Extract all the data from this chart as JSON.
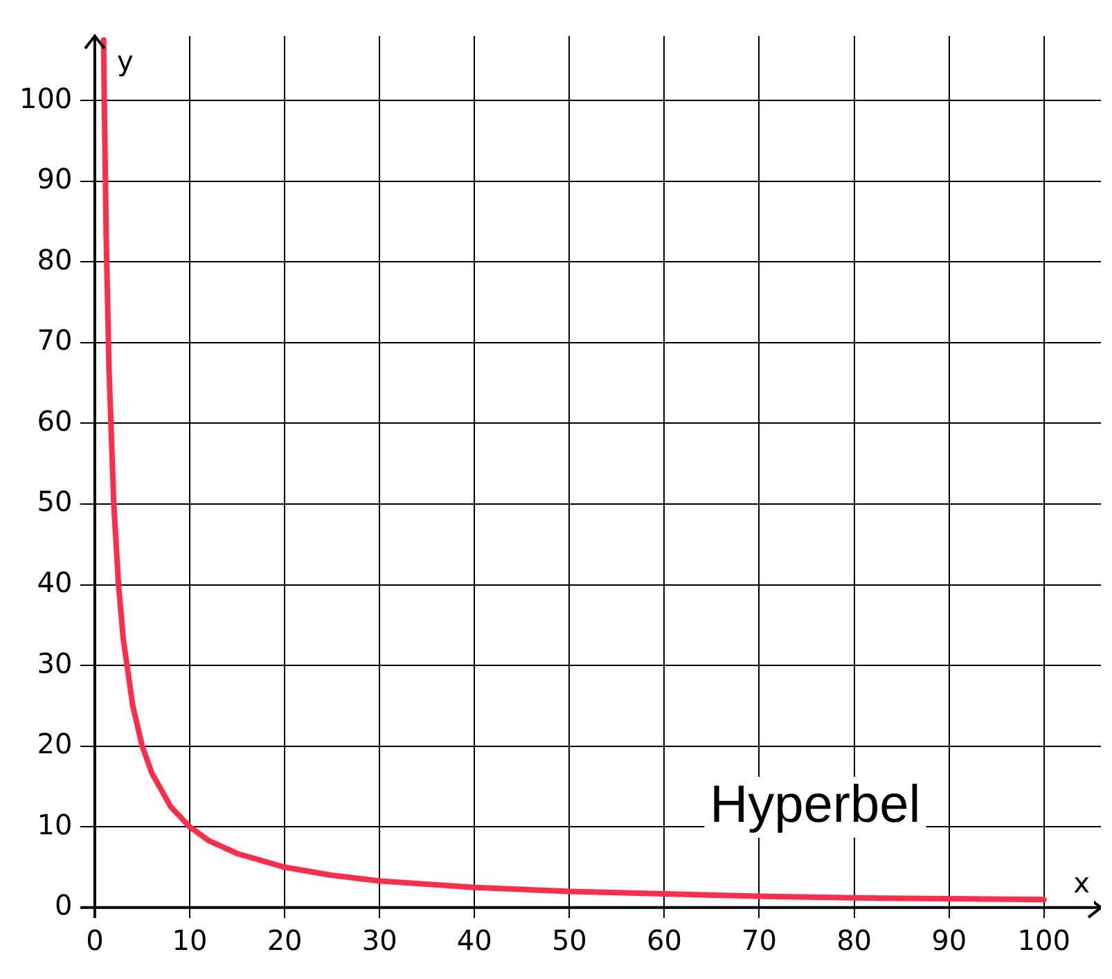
{
  "chart_data": {
    "type": "line",
    "xlabel": "x",
    "ylabel": "y",
    "series": [
      {
        "color": "#ff2d4a",
        "x": [
          0.93,
          1,
          1.2,
          1.5,
          2,
          2.5,
          3,
          4,
          5,
          6,
          8,
          10,
          12,
          15,
          20,
          25,
          30,
          40,
          50,
          60,
          70,
          80,
          90,
          100
        ],
        "values": [
          107.5,
          100,
          83.3,
          66.7,
          50,
          40,
          33.3,
          25,
          20,
          16.7,
          12.5,
          10,
          8.3,
          6.7,
          5,
          4,
          3.3,
          2.5,
          2,
          1.7,
          1.4,
          1.2,
          1.1,
          1
        ]
      }
    ],
    "xlim": [
      -1.5,
      106
    ],
    "ylim": [
      -1.3,
      108
    ],
    "xticks": [
      0,
      10,
      20,
      30,
      40,
      50,
      60,
      70,
      80,
      90,
      100
    ],
    "yticks": [
      0,
      10,
      20,
      30,
      40,
      50,
      60,
      70,
      80,
      90,
      100
    ],
    "grid": true,
    "marker": "none",
    "line_style": "solid",
    "annotations": [
      "Hyperbel"
    ]
  }
}
